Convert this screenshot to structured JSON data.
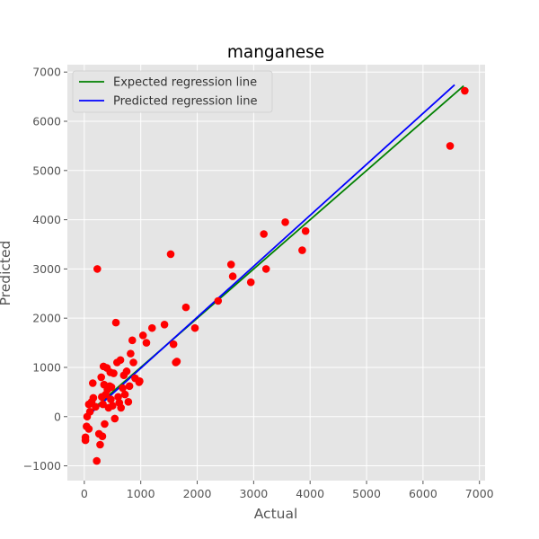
{
  "chart_data": {
    "type": "scatter",
    "title": "manganese",
    "xlabel": "Actual",
    "ylabel": "Predicted",
    "xlim": [
      -300,
      7100
    ],
    "ylim": [
      -1300,
      7150
    ],
    "x_ticks": [
      0,
      1000,
      2000,
      3000,
      4000,
      5000,
      6000,
      7000
    ],
    "y_ticks": [
      -1000,
      0,
      1000,
      2000,
      3000,
      4000,
      5000,
      6000,
      7000
    ],
    "grid": true,
    "legend_position": "upper-left",
    "colors": {
      "plot_background": "#e5e5e5",
      "grid": "#ffffff",
      "points": "#ff0000",
      "expected_line": "#008000",
      "predicted_line": "#0000ff"
    },
    "lines": [
      {
        "name": "Expected regression line",
        "color": "#008000",
        "x": [
          0,
          6720
        ],
        "y": [
          0,
          6720
        ]
      },
      {
        "name": "Predicted regression line",
        "color": "#0000ff",
        "x": [
          50,
          6560
        ],
        "y": [
          0,
          6740
        ]
      }
    ],
    "points": {
      "x": [
        20,
        20,
        40,
        50,
        80,
        80,
        100,
        130,
        150,
        160,
        200,
        220,
        230,
        260,
        280,
        300,
        310,
        320,
        330,
        340,
        350,
        360,
        380,
        400,
        410,
        430,
        450,
        460,
        470,
        480,
        500,
        520,
        540,
        560,
        580,
        600,
        620,
        640,
        650,
        680,
        700,
        720,
        750,
        780,
        800,
        820,
        850,
        870,
        900,
        970,
        980,
        1040,
        1100,
        1200,
        1420,
        1530,
        1580,
        1620,
        1640,
        1800,
        1960,
        2370,
        2600,
        2630,
        2950,
        3180,
        3220,
        3560,
        3860,
        3920,
        6480,
        6740
      ],
      "y": [
        -420,
        -480,
        -200,
        0,
        -250,
        250,
        100,
        300,
        680,
        380,
        200,
        -900,
        3000,
        -350,
        -570,
        800,
        400,
        -400,
        250,
        1020,
        650,
        -150,
        450,
        990,
        550,
        180,
        620,
        900,
        350,
        600,
        220,
        880,
        -40,
        1910,
        1100,
        400,
        280,
        1150,
        180,
        580,
        840,
        450,
        920,
        300,
        620,
        1280,
        1550,
        1100,
        780,
        700,
        720,
        1650,
        1500,
        1800,
        1870,
        3300,
        1470,
        1100,
        1120,
        2220,
        1800,
        2350,
        3090,
        2850,
        2730,
        3710,
        3000,
        3950,
        3380,
        3770,
        5500,
        6620
      ]
    }
  }
}
